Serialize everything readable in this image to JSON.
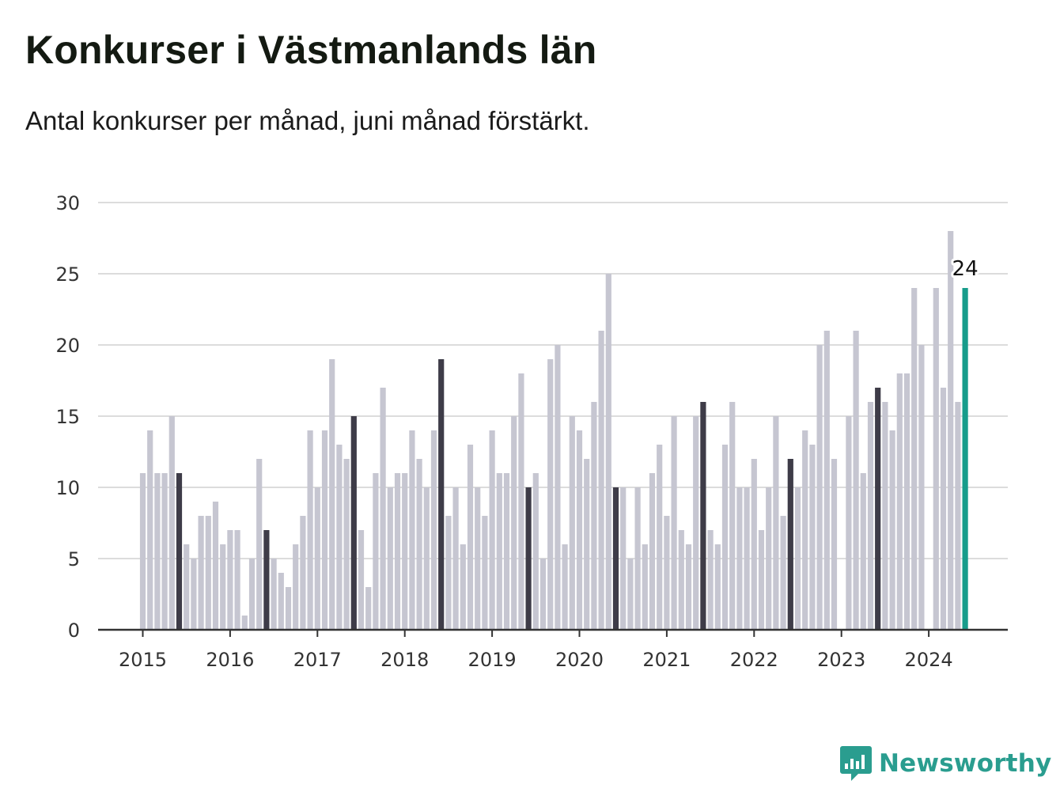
{
  "title": "Konkurser i Västmanlands län",
  "subtitle": "Antal konkurser per månad, juni månad förstärkt.",
  "brand": {
    "name": "Newsworthy",
    "color": "#2a9d8f",
    "icon": "newsworthy-logo-icon"
  },
  "colors": {
    "bar": "#c6c6d1",
    "june": "#3e3c48",
    "latest": "#179c8b",
    "grid": "#dcdcdc",
    "axis": "#333333"
  },
  "chart_data": {
    "type": "bar",
    "start": "2015-01",
    "ylim": [
      0,
      30
    ],
    "yticks": [
      0,
      5,
      10,
      15,
      20,
      25,
      30
    ],
    "xticks": [
      "2015",
      "2016",
      "2017",
      "2018",
      "2019",
      "2020",
      "2021",
      "2022",
      "2023",
      "2024"
    ],
    "highlight_month": "juni",
    "latest_label": "24",
    "grid": true,
    "values": [
      11,
      14,
      11,
      11,
      15,
      11,
      6,
      5,
      8,
      8,
      9,
      6,
      7,
      7,
      1,
      5,
      12,
      7,
      5,
      4,
      3,
      6,
      8,
      14,
      10,
      14,
      19,
      13,
      12,
      15,
      7,
      3,
      11,
      17,
      10,
      11,
      11,
      14,
      12,
      10,
      14,
      19,
      8,
      10,
      6,
      13,
      10,
      8,
      14,
      11,
      11,
      15,
      18,
      10,
      11,
      5,
      19,
      20,
      6,
      15,
      14,
      12,
      16,
      21,
      25,
      10,
      10,
      5,
      10,
      6,
      11,
      13,
      8,
      15,
      7,
      6,
      15,
      16,
      7,
      6,
      13,
      16,
      10,
      10,
      12,
      7,
      10,
      15,
      8,
      12,
      10,
      14,
      13,
      20,
      21,
      12,
      0,
      15,
      21,
      11,
      16,
      17,
      16,
      14,
      18,
      18,
      24,
      20,
      0,
      24,
      17,
      28,
      16,
      24
    ]
  }
}
